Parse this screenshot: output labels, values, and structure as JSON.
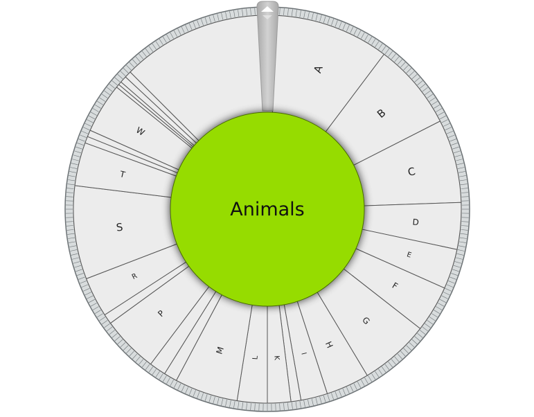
{
  "wheel": {
    "center_label": "Animals",
    "colors": {
      "segment_fill": "#ececec",
      "segment_stroke": "#555555",
      "center_fill": "#96dc00",
      "rim_fill": "#d8dcdd",
      "rim_stroke": "#6c7275",
      "pointer_fill": "#c2c2c2"
    },
    "segments": [
      {
        "label": "A",
        "sweep": 34
      },
      {
        "label": "B",
        "sweep": 26
      },
      {
        "label": "C",
        "sweep": 25
      },
      {
        "label": "D",
        "sweep": 14
      },
      {
        "label": "E",
        "sweep": 12
      },
      {
        "label": "F",
        "sweep": 14
      },
      {
        "label": "G",
        "sweep": 21
      },
      {
        "label": "H",
        "sweep": 13
      },
      {
        "label": "I",
        "sweep": 8
      },
      {
        "label": "",
        "sweep": 3
      },
      {
        "label": "K",
        "sweep": 7
      },
      {
        "label": "L",
        "sweep": 9
      },
      {
        "label": "M",
        "sweep": 19
      },
      {
        "label": "",
        "sweep": 4
      },
      {
        "label": "",
        "sweep": 5
      },
      {
        "label": "P",
        "sweep": 17
      },
      {
        "label": "",
        "sweep": 3
      },
      {
        "label": "R",
        "sweep": 12
      },
      {
        "label": "S",
        "sweep": 28
      },
      {
        "label": "T",
        "sweep": 13
      },
      {
        "label": "",
        "sweep": 2
      },
      {
        "label": "",
        "sweep": 2
      },
      {
        "label": "W",
        "sweep": 15
      },
      {
        "label": "",
        "sweep": 1
      },
      {
        "label": "",
        "sweep": 1
      },
      {
        "label": "",
        "sweep": 2
      },
      {
        "label": "",
        "sweep": 2
      },
      {
        "label": "",
        "sweep": 48
      }
    ]
  }
}
